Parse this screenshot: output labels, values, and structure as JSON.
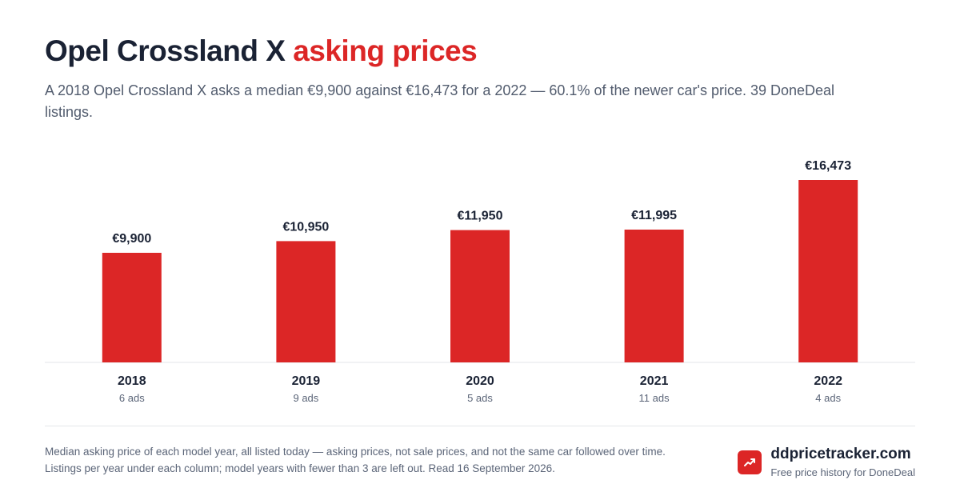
{
  "title": {
    "main": "Opel Crossland X",
    "accent": "asking prices"
  },
  "subtitle": "A 2018 Opel Crossland X asks a median €9,900 against €16,473 for a 2022 — 60.1% of the newer car's price. 39 DoneDeal listings.",
  "chart_data": {
    "type": "bar",
    "categories": [
      "2018",
      "2019",
      "2020",
      "2021",
      "2022"
    ],
    "values": [
      9900,
      10950,
      11950,
      11995,
      16473
    ],
    "value_labels": [
      "€9,900",
      "€10,950",
      "€11,950",
      "€11,995",
      "€16,473"
    ],
    "sub_labels": [
      "6 ads",
      "9 ads",
      "5 ads",
      "11 ads",
      "4 ads"
    ],
    "ylim": [
      0,
      16473
    ],
    "grid": false,
    "bar_color": "#dc2626"
  },
  "footnote": "Median asking price of each model year, all listed today — asking prices, not sale prices, and not the same car followed over time. Listings per year under each column; model years with fewer than 3 are left out. Read 16 September 2026.",
  "brand": {
    "name": "ddpricetracker.com",
    "tagline": "Free price history for DoneDeal",
    "icon": "trending-up-icon"
  },
  "colors": {
    "accent": "#dc2626",
    "text": "#1a2234",
    "muted": "#5b6578"
  }
}
